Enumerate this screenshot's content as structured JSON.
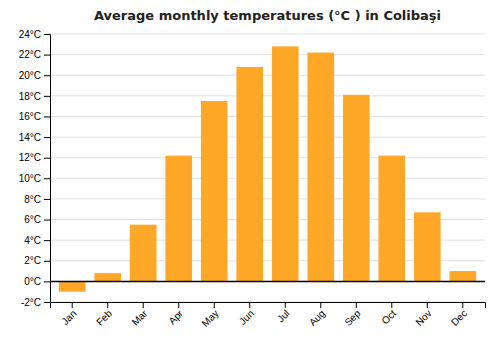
{
  "chart_data": {
    "type": "bar",
    "title": "Average monthly temperatures (°C ) in Colibaşi",
    "categories": [
      "Jan",
      "Feb",
      "Mar",
      "Apr",
      "May",
      "Jun",
      "Jul",
      "Aug",
      "Sep",
      "Oct",
      "Nov",
      "Dec"
    ],
    "values": [
      -1.0,
      0.8,
      5.5,
      12.2,
      17.5,
      20.8,
      22.8,
      22.2,
      18.1,
      12.2,
      6.7,
      1.0
    ],
    "color": "#FFA726",
    "ylim": [
      -2,
      24
    ],
    "yticks": [
      {
        "value": -2,
        "label": "-2°C"
      },
      {
        "value": 0,
        "label": "0°C"
      },
      {
        "value": 2,
        "label": "2°C"
      },
      {
        "value": 4,
        "label": "4°C"
      },
      {
        "value": 6,
        "label": "6°C"
      },
      {
        "value": 8,
        "label": "8°C"
      },
      {
        "value": 10,
        "label": "10°C"
      },
      {
        "value": 12,
        "label": "12°C"
      },
      {
        "value": 14,
        "label": "14°C"
      },
      {
        "value": 16,
        "label": "16°C"
      },
      {
        "value": 18,
        "label": "18°C"
      },
      {
        "value": 20,
        "label": "20°C"
      },
      {
        "value": 22,
        "label": "22°C"
      },
      {
        "value": 24,
        "label": "24°C"
      }
    ],
    "grid": true
  }
}
